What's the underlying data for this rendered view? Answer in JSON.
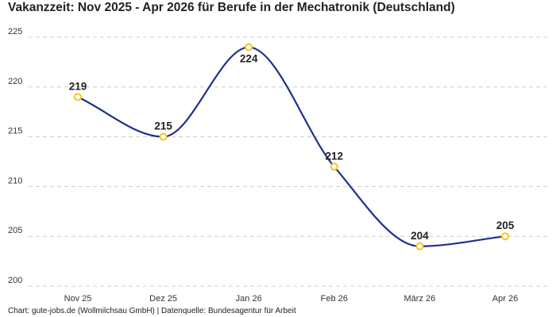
{
  "title": "Vakanzzeit: Nov 2025 - Apr 2026 für Berufe in der Mechatronik (Deutschland)",
  "source": "Chart: gute-jobs.de (Wollmilchsau GmbH) | Datenquelle: Bundesagentur für Arbeit",
  "colors": {
    "line": "#1f2f8c",
    "marker_stroke": "#f5c518",
    "marker_fill": "#ffffff",
    "grid": "#cccccc"
  },
  "chart_data": {
    "type": "line",
    "title": "Vakanzzeit: Nov 2025 - Apr 2026 für Berufe in der Mechatronik (Deutschland)",
    "xlabel": "",
    "ylabel": "",
    "categories": [
      "Nov 25",
      "Dez 25",
      "Jan 26",
      "Feb 26",
      "März 26",
      "Apr 26"
    ],
    "series": [
      {
        "values": [
          219,
          215,
          224,
          212,
          204,
          205
        ]
      }
    ],
    "data_labels": [
      "219",
      "215",
      "224",
      "212",
      "204",
      "205"
    ],
    "ylim": [
      200,
      225
    ],
    "yticks": [
      "200",
      "205",
      "210",
      "215",
      "220",
      "225"
    ],
    "grid": true,
    "smooth": true
  }
}
